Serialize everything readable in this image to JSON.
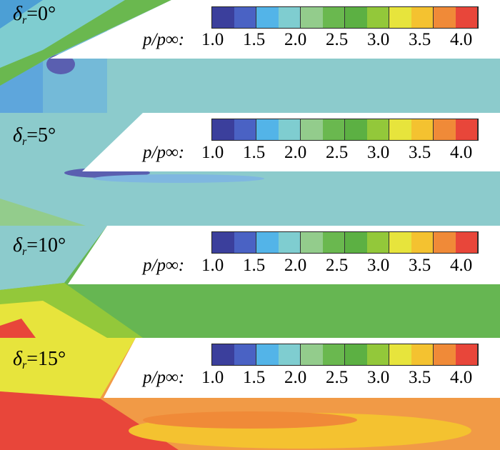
{
  "colorbar": {
    "label": "p/p∞:",
    "tick_labels": [
      "1.0",
      "1.5",
      "2.0",
      "2.5",
      "3.0",
      "3.5",
      "4.0"
    ],
    "range": [
      1.0,
      4.0
    ],
    "colors": [
      "#3b3f9c",
      "#4a62c4",
      "#53b4e8",
      "#7fcdd0",
      "#93cc8c",
      "#6ab84f",
      "#5cb043",
      "#93c83a",
      "#e7e43c",
      "#f4c230",
      "#f08a38",
      "#e8463a"
    ]
  },
  "panels": [
    {
      "symbol": "δ",
      "subscript": "r",
      "value": "=0°",
      "background": "#8ccbcc",
      "accent": "#4c9fd5"
    },
    {
      "symbol": "δ",
      "subscript": "r",
      "value": "=5°",
      "background": "#8ccbcc",
      "accent": "#5a5fb0"
    },
    {
      "symbol": "δ",
      "subscript": "r",
      "value": "=10°",
      "background": "#66b652",
      "accent": "#dce84a"
    },
    {
      "symbol": "δ",
      "subscript": "r",
      "value": "=15°",
      "background": "#f19a46",
      "accent": "#e8463a"
    }
  ]
}
